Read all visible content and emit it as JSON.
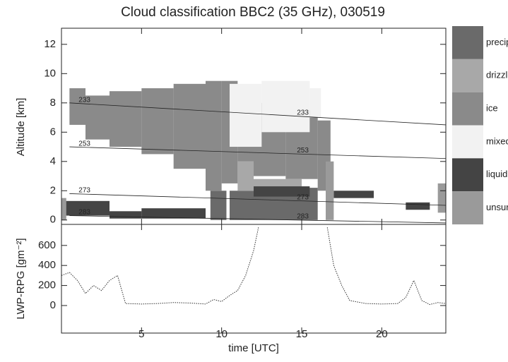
{
  "chart_data": [
    {
      "type": "classification",
      "title": "Cloud classification BBC2 (35 GHz), 030519",
      "y_label": "Altitude [km]",
      "xlim": [
        0,
        24
      ],
      "ylim": [
        -0.3,
        13.1
      ],
      "yticks": [
        0,
        2,
        4,
        6,
        8,
        10,
        12
      ],
      "series": [
        {
          "name": "precip.",
          "color": "#6a6a6a",
          "boxes": [
            [
              10.5,
              12,
              0,
              2
            ],
            [
              12,
              16,
              0,
              2.2
            ],
            [
              9.3,
              10.3,
              0,
              2
            ]
          ]
        },
        {
          "name": "drizzle",
          "color": "#a8a8a8",
          "boxes": [
            [
              11,
              12,
              2,
              4
            ],
            [
              12,
              15,
              2,
              2.8
            ]
          ]
        },
        {
          "name": "ice",
          "color": "#8a8a8a",
          "boxes": [
            [
              0.5,
              1.5,
              6.5,
              9
            ],
            [
              1.5,
              3,
              5.5,
              8.5
            ],
            [
              3,
              5,
              5,
              8.8
            ],
            [
              5,
              7,
              4.5,
              9
            ],
            [
              7,
              9,
              3.5,
              9.3
            ],
            [
              9,
              10,
              2,
              9.5
            ],
            [
              10,
              11,
              2.5,
              9.5
            ],
            [
              11,
              12,
              4,
              9
            ],
            [
              12,
              14,
              3,
              8
            ],
            [
              14,
              16,
              2.8,
              7.5
            ],
            [
              16,
              16.8,
              2,
              6.8
            ]
          ]
        },
        {
          "name": "mixed",
          "color": "#f2f2f2",
          "boxes": [
            [
              10.5,
              12.5,
              5,
              9.3
            ],
            [
              12.5,
              15.5,
              6,
              9.5
            ],
            [
              15.5,
              16.2,
              7,
              9
            ]
          ]
        },
        {
          "name": "liquid",
          "color": "#444444",
          "boxes": [
            [
              0,
              3,
              0.3,
              1.3
            ],
            [
              3,
              5,
              0.1,
              0.6
            ],
            [
              5,
              9,
              0.1,
              0.8
            ],
            [
              12,
              15.5,
              1.6,
              2.3
            ],
            [
              21.5,
              23,
              0.7,
              1.2
            ],
            [
              17,
              19.5,
              1.5,
              2
            ]
          ]
        },
        {
          "name": "unsure",
          "color": "#9a9a9a",
          "boxes": [
            [
              0,
              0.3,
              0,
              1.5
            ],
            [
              23.5,
              24,
              0.5,
              2.5
            ],
            [
              16.5,
              17,
              0,
              4
            ]
          ]
        }
      ],
      "contours": [
        {
          "label": "233",
          "x": [
            0.5,
            24
          ],
          "y": [
            8,
            6.5
          ]
        },
        {
          "label": "253",
          "x": [
            0.5,
            24
          ],
          "y": [
            5,
            4.2
          ]
        },
        {
          "label": "273",
          "x": [
            0.5,
            24
          ],
          "y": [
            1.8,
            1
          ]
        },
        {
          "label": "283",
          "x": [
            0.5,
            24
          ],
          "y": [
            0.3,
            -0.2
          ]
        }
      ]
    },
    {
      "type": "line",
      "y_label": "LWP-RPG [gm⁻²]",
      "x_label": "time [UTC]",
      "xlim": [
        0,
        24
      ],
      "ylim": [
        -275,
        810
      ],
      "xticks": [
        5,
        10,
        15,
        20
      ],
      "yticks": [
        0,
        200,
        400,
        600
      ],
      "color": "#333333",
      "x": [
        0,
        0.5,
        1,
        1.5,
        2,
        2.5,
        3,
        3.5,
        4,
        5,
        6,
        7,
        8,
        9,
        9.5,
        10,
        10.5,
        11,
        11.5,
        12,
        12.3,
        13,
        16,
        16.6,
        17,
        17.5,
        18,
        19,
        20,
        21,
        21.5,
        22,
        22.5,
        23,
        23.5,
        24
      ],
      "values": [
        300,
        330,
        250,
        120,
        200,
        150,
        250,
        300,
        20,
        15,
        20,
        30,
        25,
        15,
        60,
        40,
        100,
        150,
        300,
        550,
        780,
        null,
        null,
        780,
        400,
        200,
        50,
        20,
        15,
        20,
        80,
        250,
        50,
        10,
        30,
        20
      ]
    }
  ]
}
